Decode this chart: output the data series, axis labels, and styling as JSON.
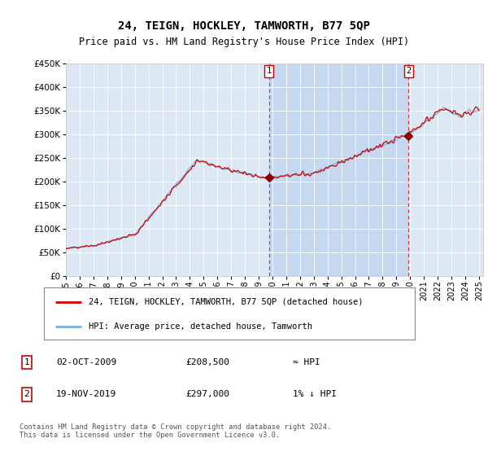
{
  "title": "24, TEIGN, HOCKLEY, TAMWORTH, B77 5QP",
  "subtitle": "Price paid vs. HM Land Registry's House Price Index (HPI)",
  "ylim": [
    0,
    450000
  ],
  "yticks": [
    0,
    50000,
    100000,
    150000,
    200000,
    250000,
    300000,
    350000,
    400000,
    450000
  ],
  "xlim_start": 1995.0,
  "xlim_end": 2025.3,
  "bg_color": "#dce9f5",
  "shade_color": "#c5d8ef",
  "line_color_red": "#cc0000",
  "line_color_blue": "#7aafd4",
  "marker1_x": 2009.75,
  "marker1_y": 208500,
  "marker2_x": 2019.88,
  "marker2_y": 297000,
  "legend_line1": "24, TEIGN, HOCKLEY, TAMWORTH, B77 5QP (detached house)",
  "legend_line2": "HPI: Average price, detached house, Tamworth",
  "ann1_box": "1",
  "ann1_date": "02-OCT-2009",
  "ann1_price": "£208,500",
  "ann1_rel": "≈ HPI",
  "ann2_box": "2",
  "ann2_date": "19-NOV-2019",
  "ann2_price": "£297,000",
  "ann2_rel": "1% ↓ HPI",
  "footer": "Contains HM Land Registry data © Crown copyright and database right 2024.\nThis data is licensed under the Open Government Licence v3.0."
}
